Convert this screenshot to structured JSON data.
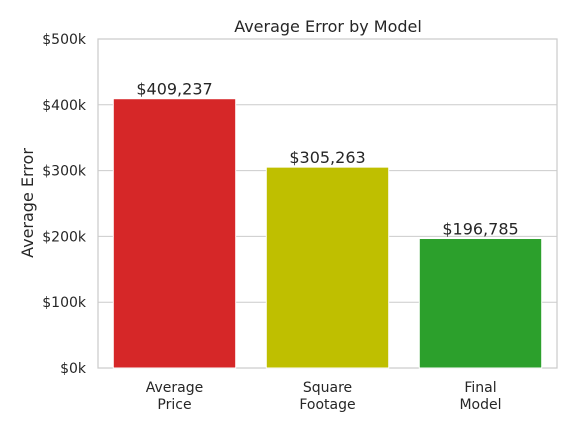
{
  "chart_data": {
    "type": "bar",
    "title": "Average Error by Model",
    "xlabel": "",
    "ylabel": "Average Error",
    "categories": [
      [
        "Average",
        "Price"
      ],
      [
        "Square",
        "Footage"
      ],
      [
        "Final",
        "Model"
      ]
    ],
    "values": [
      409237,
      305263,
      196785
    ],
    "value_labels": [
      "$409,237",
      "$305,263",
      "$196,785"
    ],
    "colors": [
      "#d62728",
      "#bfbf00",
      "#2ca02c"
    ],
    "ylim": [
      0,
      500000
    ],
    "yticks": [
      0,
      100000,
      200000,
      300000,
      400000,
      500000
    ],
    "ytick_labels": [
      "$0k",
      "$100k",
      "$200k",
      "$300k",
      "$400k",
      "$500k"
    ],
    "grid": true,
    "legend": "none"
  }
}
